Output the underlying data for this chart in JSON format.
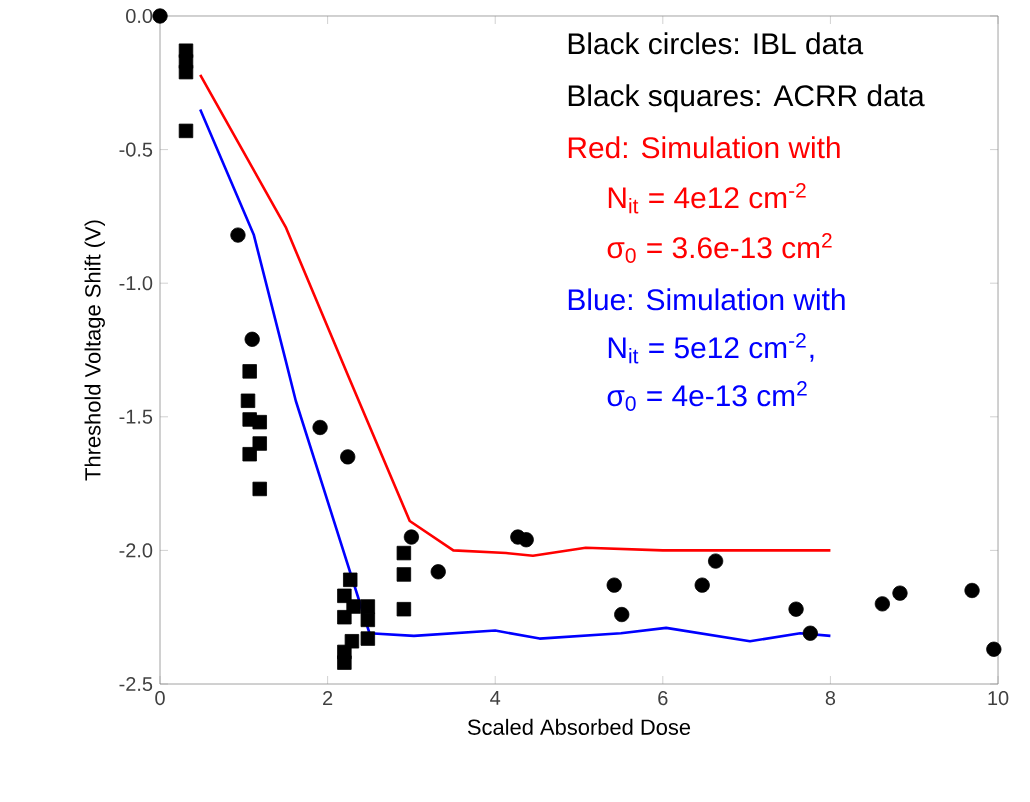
{
  "chart_data": {
    "type": "scatter",
    "xlabel": "Scaled Absorbed Dose",
    "ylabel": "Threshold Voltage Shift (V)",
    "xlim": [
      0,
      10
    ],
    "xticks": [
      0,
      2,
      4,
      6,
      8,
      10
    ],
    "ylim": [
      -2.5,
      0
    ],
    "yticks": [
      {
        "value": -2.5,
        "label": "-2.5"
      },
      {
        "value": -2.0,
        "label": "-2.0"
      },
      {
        "value": -1.5,
        "label": "-1.5"
      },
      {
        "value": -1.0,
        "label": "-1.0"
      },
      {
        "value": -0.5,
        "label": "-0.5"
      },
      {
        "value": 0,
        "label": "0.0"
      }
    ],
    "grid": false,
    "series": [
      {
        "marker": "circle",
        "color": "#000000",
        "x": [
          0,
          0.93,
          1.1,
          1.91,
          2.24,
          3.0,
          3.32,
          4.27,
          4.37,
          5.42,
          5.51,
          6.47,
          6.63,
          7.59,
          7.76,
          8.62,
          8.83,
          9.69,
          9.95
        ],
        "values": [
          0,
          -0.82,
          -1.21,
          -1.54,
          -1.65,
          -1.95,
          -2.08,
          -1.95,
          -1.96,
          -2.13,
          -2.24,
          -2.13,
          -2.04,
          -2.22,
          -2.31,
          -2.2,
          -2.16,
          -2.15,
          -2.37
        ]
      },
      {
        "marker": "square",
        "color": "#000000",
        "x": [
          0.31,
          0.31,
          0.31,
          0.31,
          1.07,
          1.05,
          1.07,
          1.19,
          1.19,
          1.07,
          1.19,
          2.27,
          2.2,
          2.2,
          2.31,
          2.48,
          2.48,
          2.48,
          2.29,
          2.2,
          2.2,
          2.91,
          2.91,
          2.91
        ],
        "values": [
          -0.13,
          -0.17,
          -0.21,
          -0.43,
          -1.33,
          -1.44,
          -1.51,
          -1.52,
          -1.6,
          -1.64,
          -1.77,
          -2.11,
          -2.17,
          -2.25,
          -2.21,
          -2.21,
          -2.26,
          -2.33,
          -2.34,
          -2.38,
          -2.42,
          -2.01,
          -2.09,
          -2.22
        ]
      },
      {
        "type": "line",
        "marker": "none",
        "color": "#ff0000",
        "x": [
          0.48,
          1.5,
          2.25,
          2.98,
          3.5,
          4.13,
          4.45,
          5.08,
          6.0,
          7.0,
          8.0
        ],
        "values": [
          -0.22,
          -0.79,
          -1.35,
          -1.89,
          -2.0,
          -2.01,
          -2.02,
          -1.99,
          -2.0,
          -2.0,
          -2.0
        ]
      },
      {
        "type": "line",
        "marker": "none",
        "color": "#0000ff",
        "x": [
          0.48,
          1.12,
          1.5,
          1.62,
          2.5,
          3.03,
          4.0,
          4.53,
          5.5,
          6.04,
          7.04,
          7.64,
          8.0
        ],
        "values": [
          -0.35,
          -0.82,
          -1.29,
          -1.44,
          -2.31,
          -2.32,
          -2.3,
          -2.33,
          -2.31,
          -2.29,
          -2.34,
          -2.31,
          -2.32
        ]
      }
    ],
    "annotations": [
      "Black circles: IBL data",
      "Black squares: ACRR  data",
      "Red: Simulation with",
      "N$_{it}$ = 4e12 cm$^{-2}$",
      "σ$_{0}$ = 3.6e-13 cm$^{2}$",
      "Blue: Simulation with",
      "N$_{it}$ = 5e12 cm$^{-2}$,",
      "σ$_{0}$ = 4e-13 cm$^{2}$"
    ]
  }
}
